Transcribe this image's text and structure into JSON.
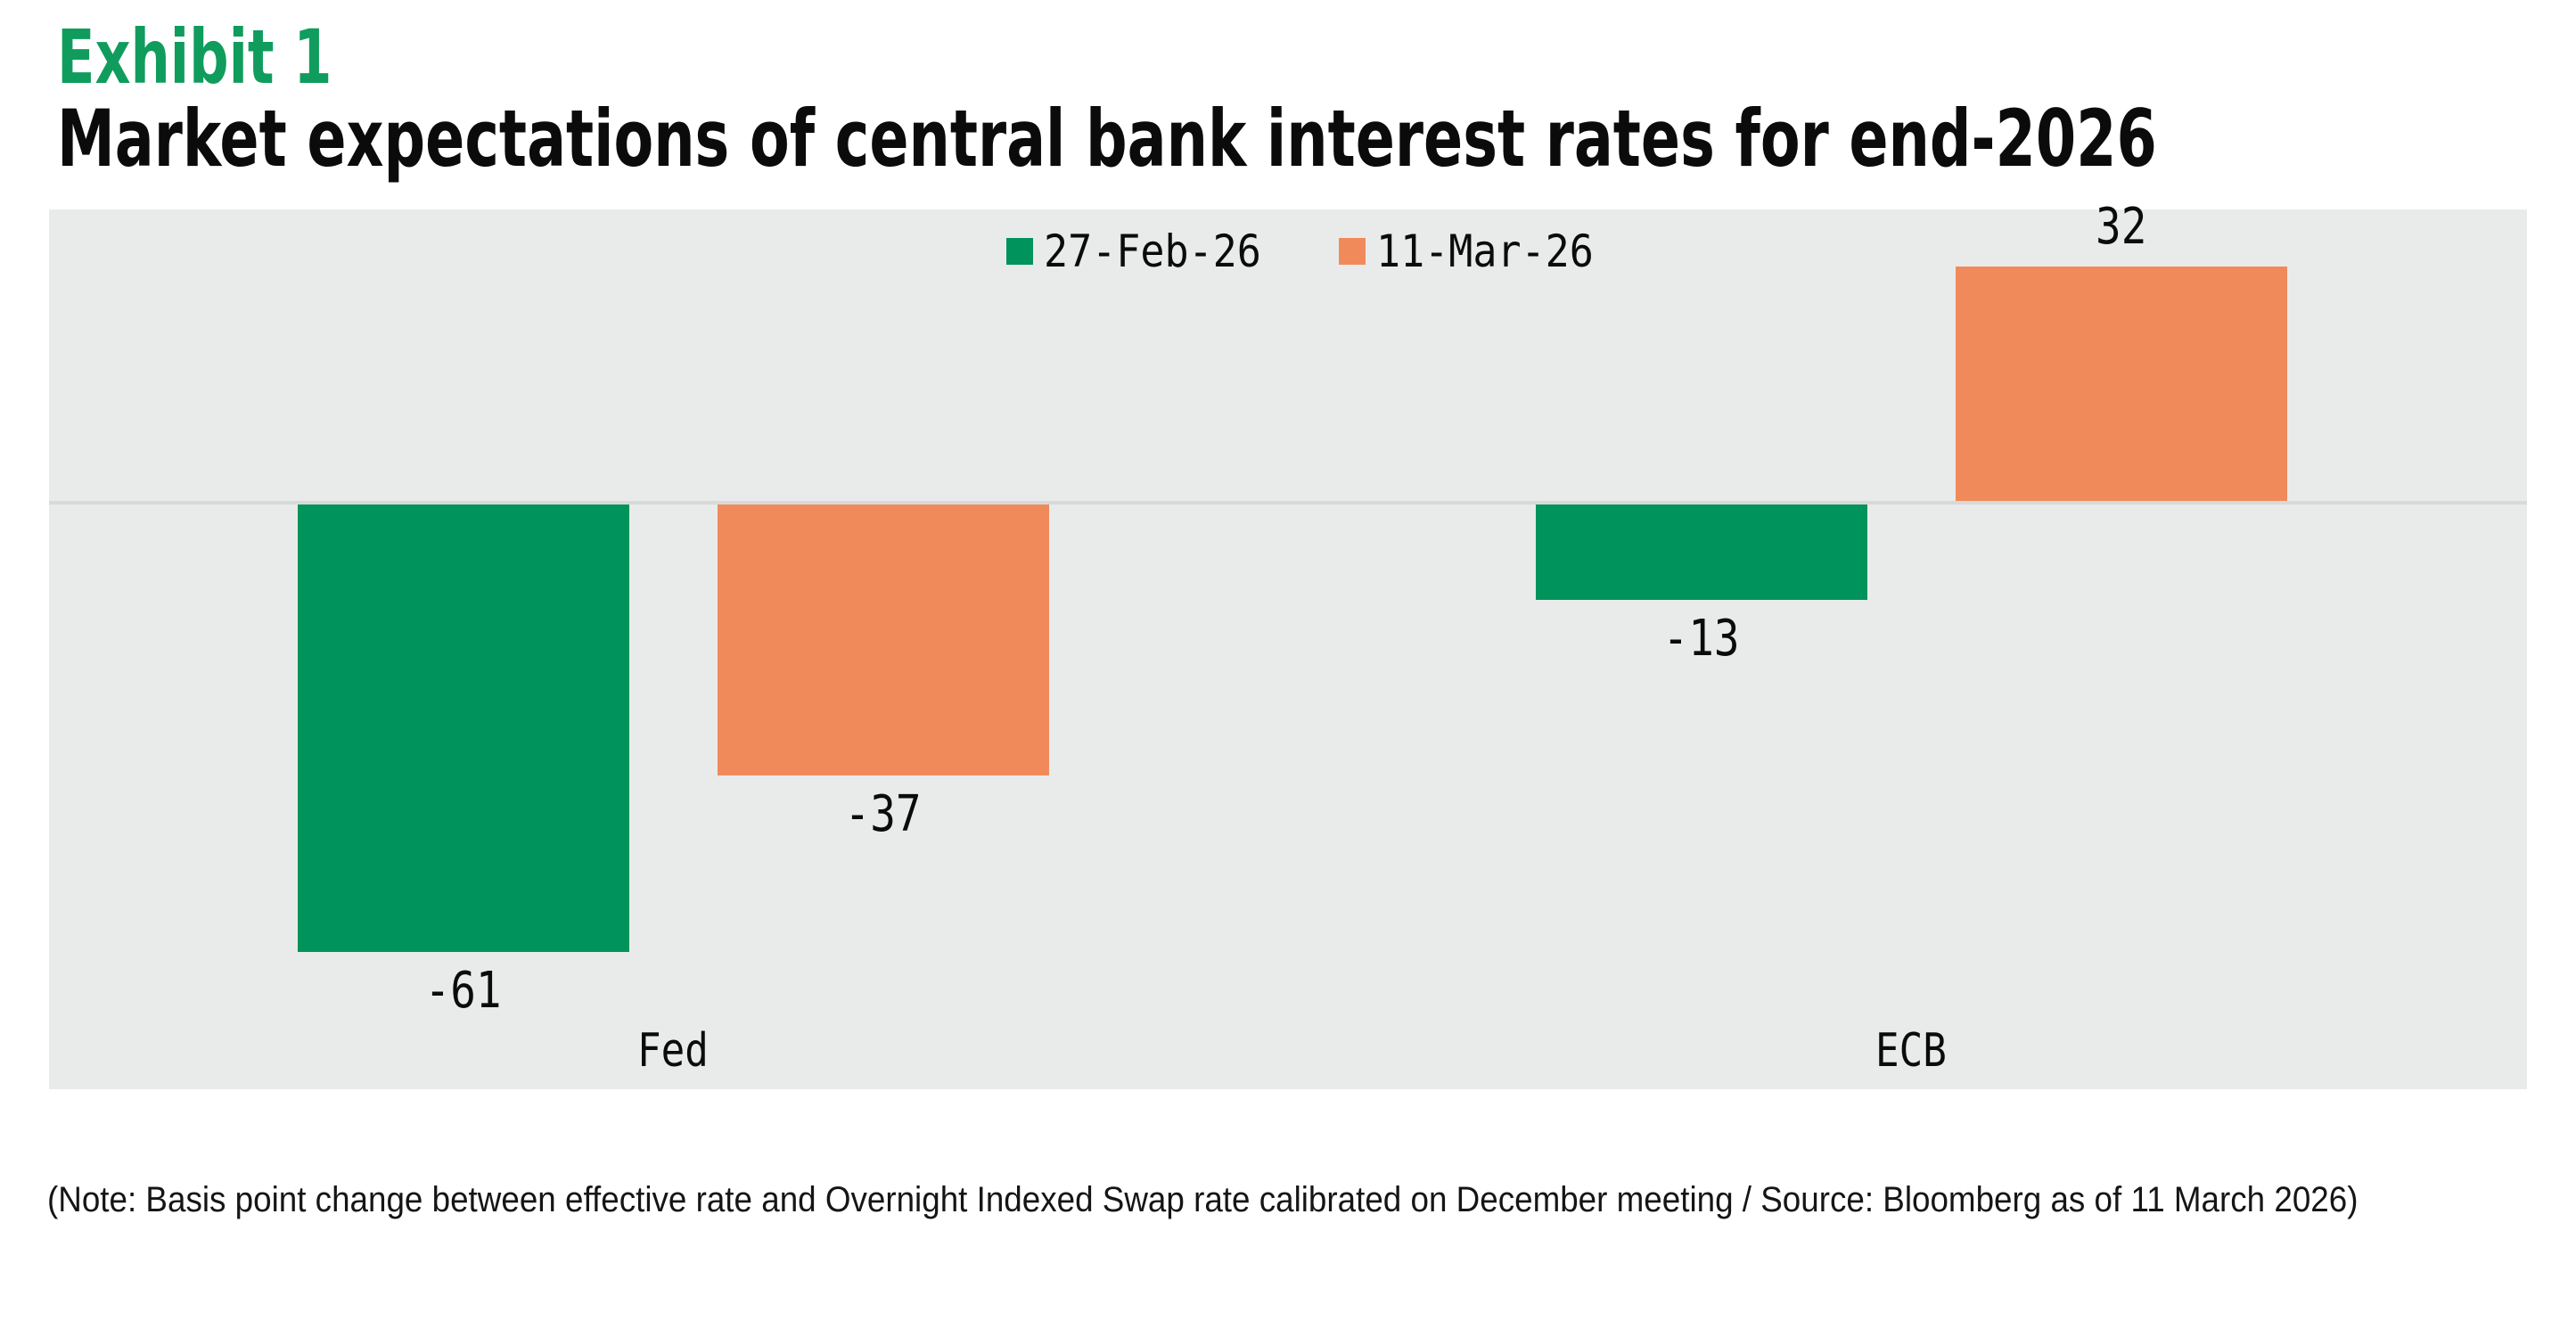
{
  "exhibit_label": "Exhibit 1",
  "title": "Market expectations of central bank interest rates for end-2026",
  "note": "(Note: Basis point change between effective rate and Overnight Indexed Swap rate calibrated on December meeting / Source: Bloomberg as of 11 March 2026)",
  "legend": {
    "position": "top-center",
    "items": [
      {
        "label": "27-Feb-26",
        "color": "#00935B"
      },
      {
        "label": "11-Mar-26",
        "color": "#F08A5B"
      }
    ]
  },
  "colors": {
    "series": [
      "#00935B",
      "#F08A5B"
    ],
    "heading_green": "#109C5D",
    "chart_bg": "#E9EBEB",
    "zero_line": "#D8DAD9",
    "text": "#0B0B0B"
  },
  "chart_data": {
    "type": "bar",
    "title": "Market expectations of central bank interest rates for end-2026",
    "categories": [
      "Fed",
      "ECB"
    ],
    "series": [
      {
        "name": "27-Feb-26",
        "values": [
          -61,
          -13
        ]
      },
      {
        "name": "11-Mar-26",
        "values": [
          -37,
          32
        ]
      }
    ],
    "unit": "basis points",
    "ylim": [
      -80,
      40
    ],
    "grid": false,
    "value_labels_shown": true
  }
}
